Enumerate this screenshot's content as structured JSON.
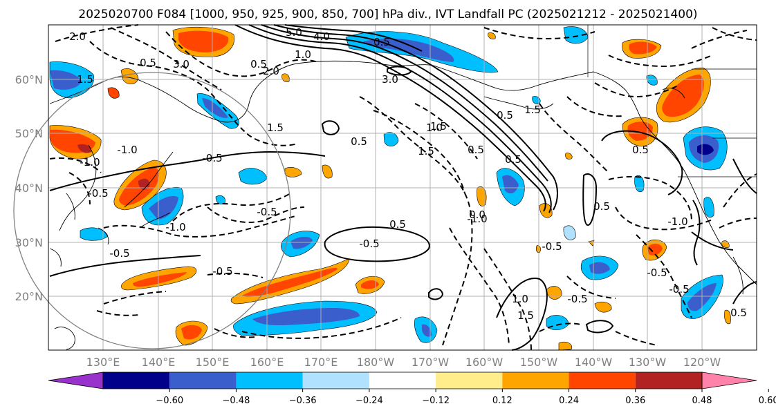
{
  "title": "2025020700 F084 [1000, 950, 925, 900, 850, 700] hPa div., IVT Landfall PC (2025021212 - 2025021400)",
  "map": {
    "lat_labels": [
      "60°N",
      "50°N",
      "40°N",
      "30°N",
      "20°N"
    ],
    "lon_labels": [
      "130°E",
      "140°E",
      "150°E",
      "160°E",
      "170°E",
      "180°W",
      "170°W",
      "160°W",
      "150°W",
      "140°W",
      "130°W",
      "120°W"
    ],
    "projection": "PlateCarree, 120°E–110°W, 10°N–70°N",
    "gridlines": true,
    "coastline_color": "#000000",
    "reference_circle_color": "#808080"
  },
  "contour_labels": [
    "2.0",
    "0.5",
    "3.0",
    "1.5",
    "5.0",
    "4.0",
    "1.0",
    "0.5",
    "2.0",
    "0.5",
    "3.0",
    "1.5",
    "1.5",
    "-0.5",
    "-1.0",
    "-0.5",
    "-0.5",
    "0.5",
    "-0.5",
    "-0.5",
    "-1.0",
    "-1.0",
    "-0.5",
    "-1.0",
    "-0.5",
    "-0.5",
    "0.5",
    "0.5",
    "-1.0",
    "0.5",
    "1.0",
    "1.5",
    "0.5",
    "0.5",
    "0.5",
    "1.0",
    "0.0",
    "0.5",
    "1.5",
    "1.5",
    "-0.5",
    "-0.5"
  ],
  "colorbar": {
    "ticks": [
      "−0.60",
      "−0.48",
      "−0.36",
      "−0.24",
      "−0.12",
      "0.12",
      "0.24",
      "0.36",
      "0.48",
      "0.60"
    ],
    "colors": [
      "#9932cc",
      "#00008b",
      "#3a5fcd",
      "#00bfff",
      "#b0e2ff",
      "#ffffff",
      "#ffec8b",
      "#ffa500",
      "#ff4500",
      "#b22222",
      "#ff82ab"
    ]
  }
}
